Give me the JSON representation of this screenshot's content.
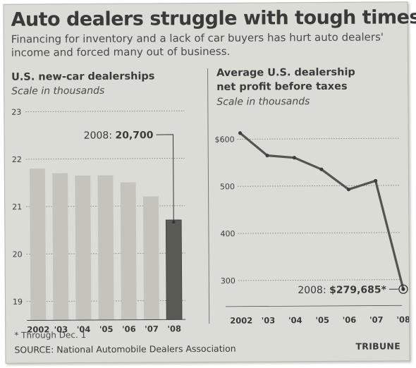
{
  "headline": "Auto dealers struggle with tough times",
  "subhead": "Financing for inventory and a lack of car buyers has hurt auto dealers' income and forced many out of business.",
  "footnote": "* Through Dec. 1",
  "source": "SOURCE: National Automobile Dealers Association",
  "credit": "TRIBUNE",
  "colors": {
    "paper": "#dcdcd6",
    "bar": "#c4c4bd",
    "highlight": "#5a5a55",
    "line": "#555550",
    "grid": "#8a8a85",
    "text": "#3a3a3a"
  },
  "chart_data": [
    {
      "type": "bar",
      "title": "U.S. new-car dealerships",
      "subtitle": "Scale in thousands",
      "categories": [
        "2002",
        "'03",
        "'04",
        "'05",
        "'06",
        "'07",
        "'08"
      ],
      "values": [
        21.8,
        21.7,
        21.65,
        21.65,
        21.5,
        21.2,
        20.7
      ],
      "highlight_index": 6,
      "ylim": [
        18.6,
        23
      ],
      "yticks": [
        19,
        20,
        21,
        22,
        23
      ],
      "ytick_labels": [
        "19",
        "20",
        "21",
        "22",
        "23"
      ],
      "grid": true,
      "annotation": {
        "prefix": "2008: ",
        "value": "20,700"
      }
    },
    {
      "type": "line",
      "title_lines": [
        "Average U.S. dealership",
        "net profit before taxes"
      ],
      "subtitle": "Scale in thousands",
      "categories": [
        "2002",
        "'03",
        "'04",
        "'05",
        "'06",
        "'07",
        "'08"
      ],
      "values": [
        613,
        565,
        560,
        535,
        492,
        510,
        279.685
      ],
      "ylim": [
        260,
        640
      ],
      "yticks": [
        300,
        400,
        500,
        600
      ],
      "ytick_labels": [
        "300",
        "400",
        "500",
        "$600"
      ],
      "grid": true,
      "annotation": {
        "prefix": "2008: ",
        "value": "$279,685*"
      }
    }
  ]
}
